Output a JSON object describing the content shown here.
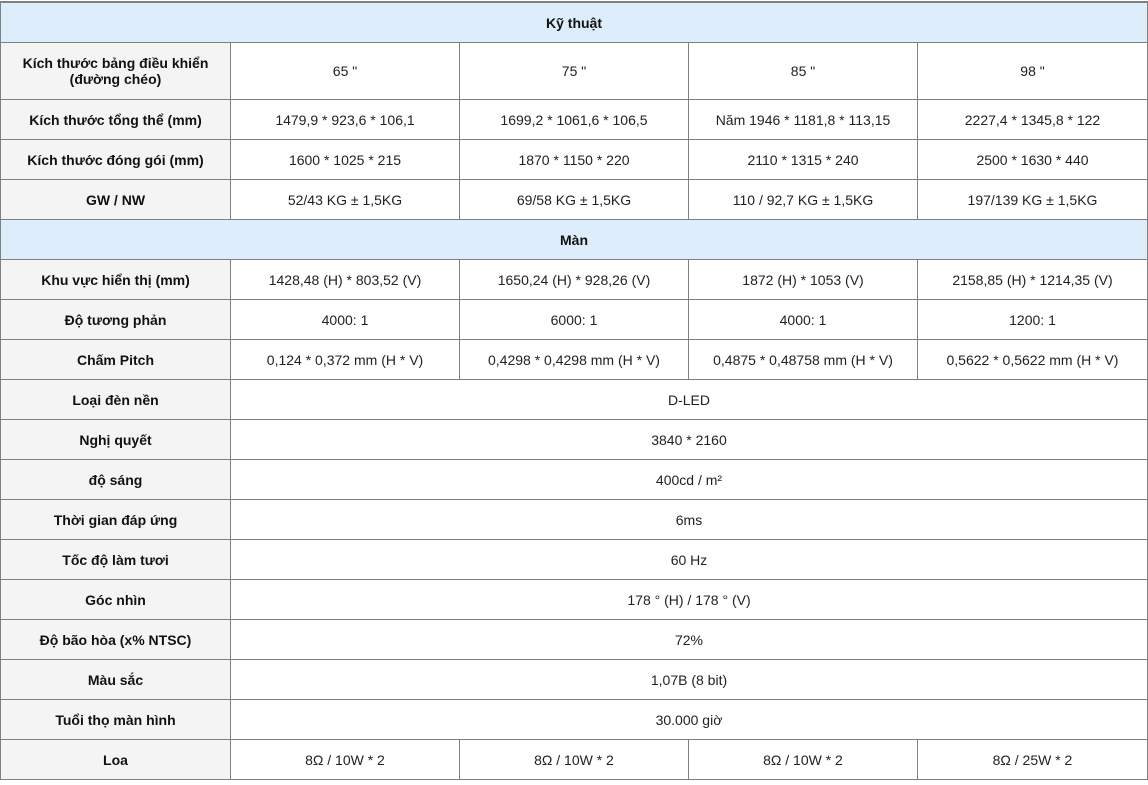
{
  "sections": [
    {
      "title": "Kỹ thuật",
      "rows": [
        {
          "label": "Kích thước bảng điều khiển (đường chéo)",
          "values": [
            "65 \"",
            "75 \"",
            "85 \"",
            "98 \""
          ]
        },
        {
          "label": "Kích thước tổng thể (mm)",
          "values": [
            "1479,9 * 923,6 * 106,1",
            "1699,2 * 1061,6 * 106,5",
            "Năm 1946 * 1181,8 * 113,15",
            "2227,4 * 1345,8 * 122"
          ]
        },
        {
          "label": "Kích thước đóng gói (mm)",
          "values": [
            "1600 * 1025 * 215",
            "1870 * 1150 * 220",
            "2110 * 1315 * 240",
            "2500 * 1630 * 440"
          ]
        },
        {
          "label": "GW / NW",
          "values": [
            "52/43 KG ± 1,5KG",
            "69/58 KG ± 1,5KG",
            "110 / 92,7 KG ± 1,5KG",
            "197/139 KG ± 1,5KG"
          ]
        }
      ]
    },
    {
      "title": "Màn",
      "rows": [
        {
          "label": "Khu vực hiển thị (mm)",
          "values": [
            "1428,48 (H) * 803,52 (V)",
            "1650,24 (H) * 928,26 (V)",
            "1872 (H) * 1053 (V)",
            "2158,85 (H) * 1214,35 (V)"
          ]
        },
        {
          "label": "Độ tương phản",
          "values": [
            "4000: 1",
            "6000: 1",
            "4000: 1",
            "1200: 1"
          ]
        },
        {
          "label": "Chấm Pitch",
          "values": [
            "0,124 * 0,372 mm (H * V)",
            "0,4298 * 0,4298 mm (H * V)",
            "0,4875 * 0,48758 mm (H * V)",
            "0,5622 * 0,5622 mm (H * V)"
          ]
        },
        {
          "label": "Loại đèn nền",
          "values": [
            "D-LED"
          ]
        },
        {
          "label": "Nghị quyết",
          "values": [
            "3840 * 2160"
          ]
        },
        {
          "label": "độ sáng",
          "values": [
            "400cd / m²"
          ]
        },
        {
          "label": "Thời gian đáp ứng",
          "values": [
            "6ms"
          ]
        },
        {
          "label": "Tốc độ làm tươi",
          "values": [
            "60 Hz"
          ]
        },
        {
          "label": "Góc nhìn",
          "values": [
            "178 ° (H) / 178 ° (V)"
          ]
        },
        {
          "label": "Độ bão hòa (x% NTSC)",
          "values": [
            "72%"
          ]
        },
        {
          "label": "Màu sắc",
          "values": [
            "1,07B (8 bit)"
          ]
        },
        {
          "label": "Tuổi thọ màn hình",
          "values": [
            "30.000 giờ"
          ]
        },
        {
          "label": "Loa",
          "values": [
            "8Ω / 10W * 2",
            "8Ω / 10W * 2",
            "8Ω / 10W * 2",
            "8Ω / 25W * 2"
          ]
        }
      ]
    }
  ]
}
